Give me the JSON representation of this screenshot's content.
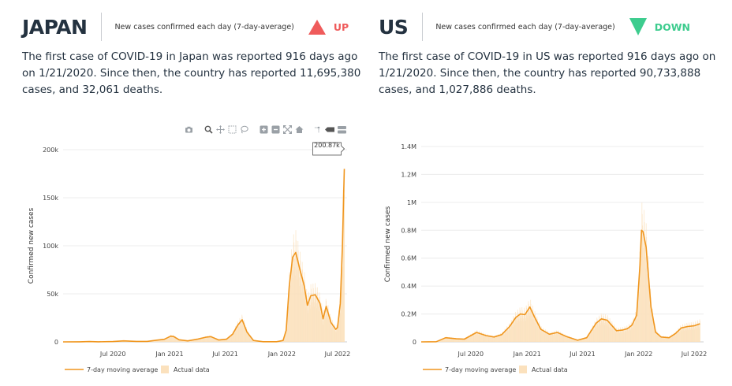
{
  "toolbar": {
    "icons": [
      "camera-icon",
      "zoom-icon",
      "pan-icon",
      "box-select-icon",
      "lasso-icon",
      "zoom-in-icon",
      "zoom-out-icon",
      "autoscale-icon",
      "home-icon",
      "spike-lines-icon",
      "hover-closest-icon",
      "hover-compare-icon"
    ]
  },
  "panels": [
    {
      "country": "JAPAN",
      "metric_label": "New cases confirmed each day (7-day-average)",
      "trend": "UP",
      "trend_color": "#ef5b5b",
      "summary": "The first case of COVID-19 in Japan was reported 916 days ago on 1/21/2020. Since then, the country has reported 11,695,380 cases, and 32,061 deaths.",
      "hover_label": "200.87k"
    },
    {
      "country": "US",
      "metric_label": "New cases confirmed each day (7-day-average)",
      "trend": "DOWN",
      "trend_color": "#3dcc8e",
      "summary": "The first case of COVID-19 in US was reported 916 days ago on 1/21/2020. Since then, the country has reported 90,733,888 cases, and 1,027,886 deaths.",
      "hover_label": ""
    }
  ],
  "chart_data": [
    {
      "type": "area",
      "country": "JAPAN",
      "ylabel": "Confirmed new cases",
      "ylim": [
        0,
        200000
      ],
      "y_ticks": [
        0,
        50000,
        100000,
        150000,
        200000
      ],
      "y_tick_labels": [
        "0",
        "50k",
        "100k",
        "150k",
        "200k"
      ],
      "x_ticks": [
        "2020-07-01",
        "2021-01-01",
        "2021-07-01",
        "2022-01-01",
        "2022-07-01"
      ],
      "x_tick_labels": [
        "Jul 2020",
        "Jan 2021",
        "Jul 2021",
        "Jan 2022",
        "Jul 2022"
      ],
      "legend": [
        "7-day moving average",
        "Actual data"
      ],
      "line_color": "#f0961e",
      "bar_color": "#fbe1bd",
      "series": {
        "x": [
          "2020-01-21",
          "2020-03-15",
          "2020-04-15",
          "2020-05-15",
          "2020-07-01",
          "2020-08-05",
          "2020-09-15",
          "2020-10-20",
          "2020-11-20",
          "2020-12-15",
          "2021-01-05",
          "2021-01-15",
          "2021-02-01",
          "2021-03-01",
          "2021-04-01",
          "2021-05-01",
          "2021-05-15",
          "2021-06-10",
          "2021-07-05",
          "2021-07-25",
          "2021-08-10",
          "2021-08-25",
          "2021-09-10",
          "2021-10-01",
          "2021-11-01",
          "2021-12-15",
          "2022-01-05",
          "2022-01-15",
          "2022-01-25",
          "2022-02-05",
          "2022-02-15",
          "2022-03-01",
          "2022-03-15",
          "2022-03-25",
          "2022-04-05",
          "2022-04-20",
          "2022-05-05",
          "2022-05-15",
          "2022-05-25",
          "2022-06-10",
          "2022-06-25",
          "2022-07-01",
          "2022-07-10",
          "2022-07-17",
          "2022-07-23"
        ],
        "values": [
          0,
          50,
          300,
          100,
          300,
          1100,
          500,
          500,
          1800,
          2700,
          6000,
          5500,
          2200,
          1100,
          2800,
          5000,
          5500,
          2000,
          2800,
          8000,
          17000,
          23000,
          10000,
          1500,
          200,
          150,
          1500,
          12000,
          58000,
          88000,
          93000,
          75000,
          58000,
          38000,
          48000,
          49000,
          40000,
          24000,
          37000,
          20000,
          13000,
          15000,
          40000,
          100000,
          180000
        ]
      },
      "actual_peak": 200870
    },
    {
      "type": "area",
      "country": "US",
      "ylabel": "Confirmed new cases",
      "ylim": [
        0,
        1400000
      ],
      "y_ticks": [
        0,
        200000,
        400000,
        600000,
        800000,
        1000000,
        1200000,
        1400000
      ],
      "y_tick_labels": [
        "0",
        "0.2M",
        "0.4M",
        "0.6M",
        "0.8M",
        "1M",
        "1.2M",
        "1.4M"
      ],
      "x_ticks": [
        "2020-07-01",
        "2021-01-01",
        "2021-07-01",
        "2022-01-01",
        "2022-07-01"
      ],
      "x_tick_labels": [
        "Jul 2020",
        "Jan 2021",
        "Jul 2021",
        "Jan 2022",
        "Jul 2022"
      ],
      "legend": [
        "7-day moving average",
        "Actual data"
      ],
      "line_color": "#f0961e",
      "bar_color": "#fbe1bd",
      "series": {
        "x": [
          "2020-01-21",
          "2020-03-10",
          "2020-04-10",
          "2020-05-15",
          "2020-06-10",
          "2020-07-20",
          "2020-08-20",
          "2020-09-15",
          "2020-10-10",
          "2020-11-05",
          "2020-11-25",
          "2020-12-10",
          "2020-12-25",
          "2021-01-10",
          "2021-01-25",
          "2021-02-15",
          "2021-03-15",
          "2021-04-10",
          "2021-05-10",
          "2021-06-15",
          "2021-07-15",
          "2021-08-15",
          "2021-09-01",
          "2021-09-20",
          "2021-10-20",
          "2021-11-10",
          "2021-11-25",
          "2021-12-10",
          "2021-12-25",
          "2022-01-05",
          "2022-01-10",
          "2022-01-15",
          "2022-01-25",
          "2022-02-10",
          "2022-02-25",
          "2022-03-15",
          "2022-04-10",
          "2022-05-01",
          "2022-05-20",
          "2022-06-10",
          "2022-07-01",
          "2022-07-20"
        ],
        "values": [
          0,
          1000,
          30000,
          22000,
          20000,
          68000,
          45000,
          35000,
          52000,
          110000,
          175000,
          200000,
          195000,
          250000,
          180000,
          90000,
          55000,
          68000,
          38000,
          12000,
          30000,
          135000,
          165000,
          155000,
          80000,
          85000,
          95000,
          120000,
          190000,
          550000,
          800000,
          790000,
          680000,
          250000,
          70000,
          35000,
          30000,
          60000,
          100000,
          110000,
          115000,
          130000
        ]
      }
    }
  ]
}
